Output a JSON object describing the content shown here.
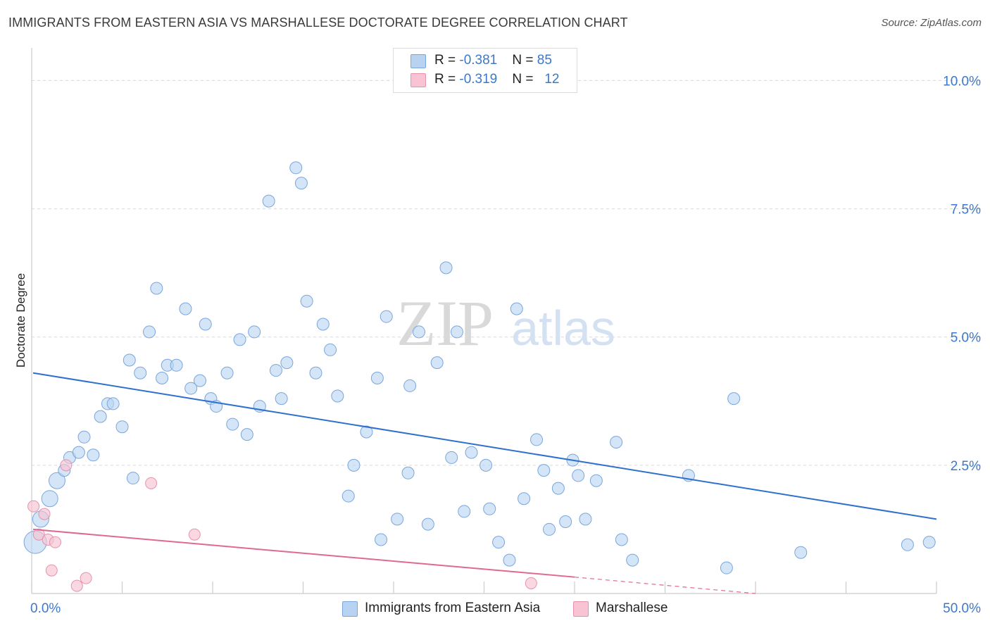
{
  "header": {
    "title": "IMMIGRANTS FROM EASTERN ASIA VS MARSHALLESE DOCTORATE DEGREE CORRELATION CHART",
    "source": "Source: ZipAtlas.com"
  },
  "watermark": {
    "zip": "ZIP",
    "atlas": "atlas"
  },
  "legend_top": {
    "rows": [
      {
        "r_label": "R = ",
        "r_value": "-0.381",
        "n_label": "N = ",
        "n_value": "85"
      },
      {
        "r_label": "R = ",
        "r_value": "-0.319",
        "n_label": "N = ",
        "n_value": "12"
      }
    ]
  },
  "colors": {
    "blue_fill": "#b8d3f2",
    "blue_stroke": "#7aa6dc",
    "blue_line": "#2f6fce",
    "pink_fill": "#f8c3d2",
    "pink_stroke": "#e592ab",
    "pink_line": "#e0698f",
    "axis_label": "#3b78c9",
    "grid": "#d8d8d8"
  },
  "chart_data": {
    "type": "scatter",
    "title": "IMMIGRANTS FROM EASTERN ASIA VS MARSHALLESE DOCTORATE DEGREE CORRELATION CHART",
    "xlabel": "",
    "ylabel": "Doctorate Degree",
    "xlim": [
      0,
      50
    ],
    "ylim": [
      0,
      10.5
    ],
    "x_tick_labels": [
      "0.0%",
      "50.0%"
    ],
    "y_ticks": [
      2.5,
      5.0,
      7.5,
      10.0
    ],
    "y_tick_labels": [
      "2.5%",
      "5.0%",
      "7.5%",
      "10.0%"
    ],
    "grid": true,
    "legend_position": "bottom-center",
    "series": [
      {
        "name": "Immigrants from Eastern Asia",
        "r": -0.381,
        "n": 85,
        "trendline": {
          "x": [
            0,
            50
          ],
          "y": [
            4.3,
            1.45
          ]
        },
        "points": [
          {
            "x": 0.2,
            "y": 1.0,
            "s": 3
          },
          {
            "x": 0.5,
            "y": 1.45,
            "s": 2
          },
          {
            "x": 1.0,
            "y": 1.85,
            "s": 2
          },
          {
            "x": 1.4,
            "y": 2.2,
            "s": 2
          },
          {
            "x": 1.8,
            "y": 2.4,
            "s": 1
          },
          {
            "x": 2.1,
            "y": 2.65,
            "s": 1
          },
          {
            "x": 2.6,
            "y": 2.75,
            "s": 1
          },
          {
            "x": 2.9,
            "y": 3.05,
            "s": 1
          },
          {
            "x": 3.4,
            "y": 2.7,
            "s": 1
          },
          {
            "x": 3.8,
            "y": 3.45,
            "s": 1
          },
          {
            "x": 4.2,
            "y": 3.7,
            "s": 1
          },
          {
            "x": 4.5,
            "y": 3.7,
            "s": 1
          },
          {
            "x": 5.0,
            "y": 3.25,
            "s": 1
          },
          {
            "x": 5.4,
            "y": 4.55,
            "s": 1
          },
          {
            "x": 5.6,
            "y": 2.25,
            "s": 1
          },
          {
            "x": 6.0,
            "y": 4.3,
            "s": 1
          },
          {
            "x": 6.5,
            "y": 5.1,
            "s": 1
          },
          {
            "x": 6.9,
            "y": 5.95,
            "s": 1
          },
          {
            "x": 7.2,
            "y": 4.2,
            "s": 1
          },
          {
            "x": 7.5,
            "y": 4.45,
            "s": 1
          },
          {
            "x": 8.0,
            "y": 4.45,
            "s": 1
          },
          {
            "x": 8.5,
            "y": 5.55,
            "s": 1
          },
          {
            "x": 8.8,
            "y": 4.0,
            "s": 1
          },
          {
            "x": 9.3,
            "y": 4.15,
            "s": 1
          },
          {
            "x": 9.6,
            "y": 5.25,
            "s": 1
          },
          {
            "x": 9.9,
            "y": 3.8,
            "s": 1
          },
          {
            "x": 10.2,
            "y": 3.65,
            "s": 1
          },
          {
            "x": 10.8,
            "y": 4.3,
            "s": 1
          },
          {
            "x": 11.1,
            "y": 3.3,
            "s": 1
          },
          {
            "x": 11.5,
            "y": 4.95,
            "s": 1
          },
          {
            "x": 11.9,
            "y": 3.1,
            "s": 1
          },
          {
            "x": 12.3,
            "y": 5.1,
            "s": 1
          },
          {
            "x": 12.6,
            "y": 3.65,
            "s": 1
          },
          {
            "x": 13.1,
            "y": 7.65,
            "s": 1
          },
          {
            "x": 13.5,
            "y": 4.35,
            "s": 1
          },
          {
            "x": 13.8,
            "y": 3.8,
            "s": 1
          },
          {
            "x": 14.1,
            "y": 4.5,
            "s": 1
          },
          {
            "x": 14.6,
            "y": 8.3,
            "s": 1
          },
          {
            "x": 14.9,
            "y": 8.0,
            "s": 1
          },
          {
            "x": 15.2,
            "y": 5.7,
            "s": 1
          },
          {
            "x": 15.7,
            "y": 4.3,
            "s": 1
          },
          {
            "x": 16.1,
            "y": 5.25,
            "s": 1
          },
          {
            "x": 16.5,
            "y": 4.75,
            "s": 1
          },
          {
            "x": 16.9,
            "y": 3.85,
            "s": 1
          },
          {
            "x": 17.5,
            "y": 1.9,
            "s": 1
          },
          {
            "x": 17.8,
            "y": 2.5,
            "s": 1
          },
          {
            "x": 18.5,
            "y": 3.15,
            "s": 1
          },
          {
            "x": 19.1,
            "y": 4.2,
            "s": 1
          },
          {
            "x": 19.3,
            "y": 1.05,
            "s": 1
          },
          {
            "x": 19.6,
            "y": 5.4,
            "s": 1
          },
          {
            "x": 20.2,
            "y": 1.45,
            "s": 1
          },
          {
            "x": 20.8,
            "y": 2.35,
            "s": 1
          },
          {
            "x": 20.9,
            "y": 4.05,
            "s": 1
          },
          {
            "x": 21.4,
            "y": 5.1,
            "s": 1
          },
          {
            "x": 21.9,
            "y": 1.35,
            "s": 1
          },
          {
            "x": 22.4,
            "y": 4.5,
            "s": 1
          },
          {
            "x": 22.9,
            "y": 6.35,
            "s": 1
          },
          {
            "x": 23.2,
            "y": 2.65,
            "s": 1
          },
          {
            "x": 23.5,
            "y": 5.1,
            "s": 1
          },
          {
            "x": 23.9,
            "y": 1.6,
            "s": 1
          },
          {
            "x": 24.3,
            "y": 2.75,
            "s": 1
          },
          {
            "x": 25.1,
            "y": 2.5,
            "s": 1
          },
          {
            "x": 25.3,
            "y": 1.65,
            "s": 1
          },
          {
            "x": 25.8,
            "y": 1.0,
            "s": 1
          },
          {
            "x": 26.4,
            "y": 0.65,
            "s": 1
          },
          {
            "x": 26.8,
            "y": 5.55,
            "s": 1
          },
          {
            "x": 27.2,
            "y": 1.85,
            "s": 1
          },
          {
            "x": 27.9,
            "y": 3.0,
            "s": 1
          },
          {
            "x": 28.3,
            "y": 2.4,
            "s": 1
          },
          {
            "x": 28.6,
            "y": 1.25,
            "s": 1
          },
          {
            "x": 29.1,
            "y": 2.05,
            "s": 1
          },
          {
            "x": 29.5,
            "y": 1.4,
            "s": 1
          },
          {
            "x": 29.9,
            "y": 2.6,
            "s": 1
          },
          {
            "x": 30.2,
            "y": 2.3,
            "s": 1
          },
          {
            "x": 30.6,
            "y": 1.45,
            "s": 1
          },
          {
            "x": 31.2,
            "y": 2.2,
            "s": 1
          },
          {
            "x": 32.3,
            "y": 2.95,
            "s": 1
          },
          {
            "x": 32.6,
            "y": 1.05,
            "s": 1
          },
          {
            "x": 33.2,
            "y": 0.65,
            "s": 1
          },
          {
            "x": 36.3,
            "y": 2.3,
            "s": 1
          },
          {
            "x": 38.4,
            "y": 0.5,
            "s": 1
          },
          {
            "x": 38.8,
            "y": 3.8,
            "s": 1
          },
          {
            "x": 42.5,
            "y": 0.8,
            "s": 1
          },
          {
            "x": 48.4,
            "y": 0.95,
            "s": 1
          },
          {
            "x": 49.6,
            "y": 1.0,
            "s": 1
          }
        ]
      },
      {
        "name": "Marshallese",
        "r": -0.319,
        "n": 12,
        "trendline": {
          "x": [
            0,
            30
          ],
          "y": [
            1.25,
            0.32
          ]
        },
        "trendline_dashed": {
          "x": [
            30,
            40
          ],
          "y": [
            0.32,
            0.0
          ]
        },
        "points": [
          {
            "x": 0.1,
            "y": 1.7
          },
          {
            "x": 0.4,
            "y": 1.15
          },
          {
            "x": 0.7,
            "y": 1.55
          },
          {
            "x": 0.9,
            "y": 1.05
          },
          {
            "x": 1.1,
            "y": 0.45
          },
          {
            "x": 1.3,
            "y": 1.0
          },
          {
            "x": 1.9,
            "y": 2.5
          },
          {
            "x": 2.5,
            "y": 0.15
          },
          {
            "x": 3.0,
            "y": 0.3
          },
          {
            "x": 6.6,
            "y": 2.15
          },
          {
            "x": 9.0,
            "y": 1.15
          },
          {
            "x": 27.6,
            "y": 0.2
          }
        ]
      }
    ]
  }
}
